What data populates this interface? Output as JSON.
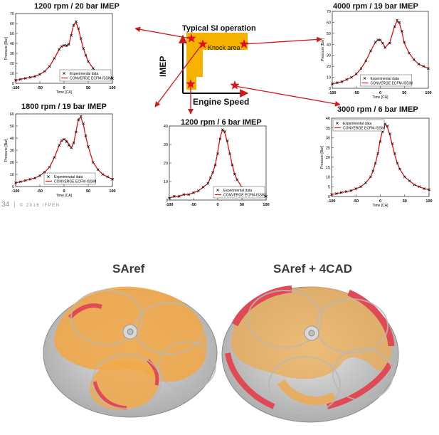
{
  "header": {
    "page_number": "34",
    "copyright": "© 2016 IFPEN"
  },
  "diagram": {
    "top_label": "Typical SI operation",
    "region_label": "Knock area",
    "y_axis_label": "IMEP",
    "x_axis_label": "Engine Speed",
    "colors": {
      "region": "#f5b300",
      "star": "#e0101a",
      "arrow": "#d21717"
    }
  },
  "charts": [
    {
      "id": "c1200_20",
      "title": "1200 rpm / 20 bar IMEP",
      "xlabel": "Time [CA]",
      "ylabel": "Pressure [Bar]",
      "xlim": [
        -100,
        100
      ],
      "ylim": [
        0,
        70
      ],
      "xticks": [
        -100,
        -50,
        0,
        50,
        100
      ],
      "yticks": [
        0,
        10,
        20,
        30,
        40,
        50,
        60,
        70
      ],
      "legend": [
        "Experimental data",
        "CONVERGE ECFM-ISSIM"
      ],
      "legend_position": "bottom-right",
      "chart_data": {
        "type": "line",
        "series": [
          {
            "name": "Experimental data",
            "style": "markers",
            "x": [
              -100,
              -90,
              -80,
              -70,
              -60,
              -50,
              -40,
              -30,
              -20,
              -10,
              -5,
              0,
              5,
              10,
              15,
              20,
              25,
              30,
              35,
              40,
              45,
              50,
              60,
              70,
              80,
              90,
              100
            ],
            "y": [
              3,
              4,
              5,
              6,
              7,
              9,
              12,
              17,
              25,
              34,
              37,
              38,
              38,
              39,
              48,
              58,
              62,
              55,
              45,
              35,
              28,
              22,
              15,
              11,
              8,
              6,
              5
            ]
          },
          {
            "name": "CONVERGE ECFM-ISSIM",
            "style": "line",
            "x": [
              -100,
              -90,
              -80,
              -70,
              -60,
              -50,
              -40,
              -30,
              -20,
              -10,
              -5,
              0,
              5,
              10,
              15,
              20,
              25,
              30,
              35,
              40,
              45,
              50,
              60,
              70,
              80,
              90,
              100
            ],
            "y": [
              3,
              4,
              5,
              6,
              7,
              9,
              12,
              17,
              25,
              34,
              37,
              38,
              37,
              39,
              49,
              59,
              61,
              54,
              44,
              35,
              28,
              22,
              15,
              11,
              8,
              6,
              5
            ]
          }
        ]
      }
    },
    {
      "id": "c4000_19",
      "title": "4000 rpm / 19 bar IMEP",
      "xlabel": "Time [CA]",
      "ylabel": "Pressure [Bar]",
      "xlim": [
        -100,
        100
      ],
      "ylim": [
        0,
        70
      ],
      "xticks": [
        -100,
        -50,
        0,
        50,
        100
      ],
      "yticks": [
        0,
        10,
        20,
        30,
        40,
        50,
        60,
        70
      ],
      "legend": [
        "Experimental data",
        "CONVERGE ECFM-ISSIM"
      ],
      "legend_position": "bottom-center",
      "chart_data": {
        "type": "line",
        "series": [
          {
            "name": "Experimental data",
            "style": "markers",
            "x": [
              -100,
              -90,
              -80,
              -70,
              -60,
              -50,
              -40,
              -30,
              -20,
              -10,
              -5,
              0,
              5,
              10,
              20,
              30,
              35,
              40,
              45,
              50,
              60,
              70,
              80,
              90,
              100
            ],
            "y": [
              4,
              5,
              6,
              8,
              10,
              13,
              18,
              25,
              34,
              42,
              44,
              44,
              41,
              37,
              41,
              56,
              62,
              60,
              52,
              42,
              32,
              26,
              22,
              20,
              18
            ]
          },
          {
            "name": "CONVERGE ECFM-ISSIM",
            "style": "line",
            "x": [
              -100,
              -90,
              -80,
              -70,
              -60,
              -50,
              -40,
              -30,
              -20,
              -10,
              -5,
              0,
              5,
              10,
              20,
              30,
              35,
              40,
              45,
              50,
              60,
              70,
              80,
              90,
              100
            ],
            "y": [
              4,
              5,
              6,
              8,
              10,
              13,
              18,
              25,
              34,
              42,
              44,
              44,
              41,
              37,
              42,
              57,
              61,
              59,
              51,
              41,
              32,
              26,
              22,
              20,
              18
            ]
          }
        ]
      }
    },
    {
      "id": "c1800_19",
      "title": "1800 rpm / 19 bar IMEP",
      "xlabel": "Time [CA]",
      "ylabel": "Pressure [Bar]",
      "xlim": [
        -100,
        100
      ],
      "ylim": [
        0,
        60
      ],
      "xticks": [
        -100,
        -50,
        0,
        50,
        100
      ],
      "yticks": [
        0,
        10,
        20,
        30,
        40,
        50,
        60
      ],
      "legend": [
        "Experimental data",
        "CONVERGE ECFM-ISSIM"
      ],
      "legend_position": "bottom-center",
      "chart_data": {
        "type": "line",
        "series": [
          {
            "name": "Experimental data",
            "style": "markers",
            "x": [
              -100,
              -90,
              -80,
              -70,
              -60,
              -50,
              -40,
              -30,
              -20,
              -10,
              -5,
              0,
              5,
              10,
              15,
              20,
              25,
              30,
              35,
              40,
              45,
              50,
              60,
              70,
              80,
              90,
              100
            ],
            "y": [
              3,
              4,
              5,
              6,
              7,
              9,
              12,
              16,
              24,
              34,
              38,
              39,
              37,
              34,
              32,
              36,
              45,
              55,
              58,
              52,
              42,
              33,
              20,
              14,
              10,
              8,
              6
            ]
          },
          {
            "name": "CONVERGE ECFM-ISSIM",
            "style": "line",
            "x": [
              -100,
              -90,
              -80,
              -70,
              -60,
              -50,
              -40,
              -30,
              -20,
              -10,
              -5,
              0,
              5,
              10,
              15,
              20,
              25,
              30,
              35,
              40,
              45,
              50,
              60,
              70,
              80,
              90,
              100
            ],
            "y": [
              3,
              4,
              5,
              6,
              7,
              9,
              12,
              16,
              24,
              34,
              38,
              39,
              38,
              35,
              32,
              36,
              46,
              56,
              57,
              51,
              41,
              33,
              20,
              14,
              10,
              8,
              6
            ]
          }
        ]
      }
    },
    {
      "id": "c1200_6",
      "title": "1200 rpm / 6 bar IMEP",
      "xlabel": "",
      "ylabel": "",
      "xlim": [
        -100,
        100
      ],
      "ylim": [
        0,
        40
      ],
      "xticks": [
        -100,
        -50,
        0,
        50,
        100
      ],
      "yticks": [
        0,
        10,
        20,
        30,
        40
      ],
      "legend": [
        "Experimental data",
        "CONVERGE ECFM-ISSIM"
      ],
      "legend_position": "bottom-right",
      "chart_data": {
        "type": "line",
        "series": [
          {
            "name": "Experimental data",
            "style": "markers",
            "x": [
              -100,
              -90,
              -80,
              -70,
              -60,
              -50,
              -40,
              -30,
              -20,
              -15,
              -10,
              -5,
              0,
              5,
              10,
              15,
              20,
              25,
              30,
              35,
              40,
              50,
              60,
              70,
              80,
              90,
              100
            ],
            "y": [
              1,
              2,
              2,
              3,
              3,
              4,
              5,
              7,
              9,
              12,
              15,
              19,
              25,
              33,
              38,
              37,
              32,
              25,
              19,
              14,
              11,
              7,
              5,
              4,
              3,
              2,
              2
            ]
          },
          {
            "name": "CONVERGE ECFM-ISSIM",
            "style": "line",
            "x": [
              -100,
              -90,
              -80,
              -70,
              -60,
              -50,
              -40,
              -30,
              -20,
              -15,
              -10,
              -5,
              0,
              5,
              10,
              15,
              20,
              25,
              30,
              35,
              40,
              50,
              60,
              70,
              80,
              90,
              100
            ],
            "y": [
              1,
              2,
              2,
              3,
              3,
              4,
              5,
              7,
              9,
              12,
              15,
              19,
              26,
              34,
              38,
              36,
              31,
              25,
              19,
              14,
              11,
              7,
              5,
              4,
              3,
              2,
              2
            ]
          }
        ]
      }
    },
    {
      "id": "c3000_6",
      "title": "3000 rpm / 6 bar IMEP",
      "xlabel": "Time [CA]",
      "ylabel": "Pressure [Bar]",
      "xlim": [
        -100,
        100
      ],
      "ylim": [
        0,
        40
      ],
      "xticks": [
        -100,
        -50,
        0,
        50,
        100
      ],
      "yticks": [
        0,
        5,
        10,
        15,
        20,
        25,
        30,
        35,
        40
      ],
      "legend": [
        "Experimental data",
        "CONVERGE ECFM-ISSIM"
      ],
      "legend_position": "top-left",
      "chart_data": {
        "type": "line",
        "series": [
          {
            "name": "Experimental data",
            "style": "markers",
            "x": [
              -100,
              -90,
              -80,
              -70,
              -60,
              -50,
              -40,
              -30,
              -20,
              -15,
              -10,
              -5,
              0,
              5,
              10,
              15,
              20,
              25,
              30,
              35,
              40,
              50,
              60,
              70,
              80,
              90,
              100
            ],
            "y": [
              1,
              1.5,
              2,
              2.5,
              3,
              4,
              5,
              7,
              10,
              13,
              17,
              22,
              28,
              33,
              37,
              36,
              32,
              27,
              22,
              17,
              14,
              10,
              8,
              6,
              5,
              4,
              3.5
            ]
          },
          {
            "name": "CONVERGE ECFM-ISSIM",
            "style": "line",
            "x": [
              -100,
              -90,
              -80,
              -70,
              -60,
              -50,
              -40,
              -30,
              -20,
              -15,
              -10,
              -5,
              0,
              5,
              10,
              15,
              20,
              25,
              30,
              35,
              40,
              50,
              60,
              70,
              80,
              90,
              100
            ],
            "y": [
              1,
              1.5,
              2,
              2.5,
              3,
              4,
              5,
              7,
              10,
              13,
              17,
              22,
              29,
              34,
              37,
              35,
              31,
              26,
              21,
              17,
              14,
              10,
              8,
              6,
              5,
              4,
              3.5
            ]
          }
        ]
      }
    }
  ],
  "renders": [
    {
      "id": "saref",
      "title": "SAref"
    },
    {
      "id": "saref4",
      "title": "SAref +  4CAD"
    }
  ]
}
